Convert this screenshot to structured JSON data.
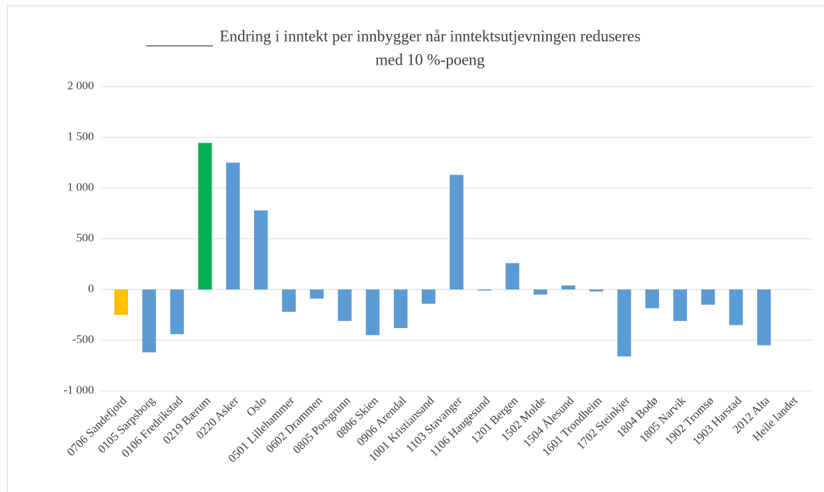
{
  "chart_data": {
    "type": "bar",
    "title": [
      "Endring i inntekt per innbygger når inntektsutjevningen reduseres",
      "med 10 %-poeng"
    ],
    "categories": [
      "0706 Sandefjord",
      "0105 Sarpsborg",
      "0106 Fredrikstad",
      "0219 Bærum",
      "0220 Asker",
      "Oslo",
      "0501 Lillehammer",
      "0602 Drammen",
      "0805 Porsgrunn",
      "0806 Skien",
      "0906 Arendal",
      "1001 Kristiansand",
      "1103 Stavanger",
      "1106 Haugesund",
      "1201 Bergen",
      "1502 Molde",
      "1504 Ålesund",
      "1601 Trondheim",
      "1702 Steinkjer",
      "1804 Bodø",
      "1805 Narvik",
      "1902 Tromsø",
      "1903 Harstad",
      "2012 Alta",
      "Heile landet"
    ],
    "values": [
      -250,
      -620,
      -440,
      1445,
      1250,
      780,
      -220,
      -90,
      -310,
      -450,
      -380,
      -140,
      1130,
      -10,
      260,
      -50,
      40,
      -20,
      -660,
      -185,
      -310,
      -150,
      -350,
      -550,
      0
    ],
    "colors": [
      "#ffc000",
      "#5b9bd5",
      "#5b9bd5",
      "#00b050",
      "#5b9bd5",
      "#5b9bd5",
      "#5b9bd5",
      "#5b9bd5",
      "#5b9bd5",
      "#5b9bd5",
      "#5b9bd5",
      "#5b9bd5",
      "#5b9bd5",
      "#5b9bd5",
      "#5b9bd5",
      "#5b9bd5",
      "#5b9bd5",
      "#5b9bd5",
      "#5b9bd5",
      "#5b9bd5",
      "#5b9bd5",
      "#5b9bd5",
      "#5b9bd5",
      "#5b9bd5",
      "#5b9bd5"
    ],
    "ylim": [
      -1000,
      2000
    ],
    "yticks": [
      {
        "value": -1000,
        "label": "-1 000"
      },
      -500,
      0,
      500,
      {
        "value": 1000,
        "label": "1 000"
      },
      {
        "value": 1500,
        "label": "1 500"
      },
      {
        "value": 2000,
        "label": "2 000"
      }
    ],
    "grid": true
  }
}
